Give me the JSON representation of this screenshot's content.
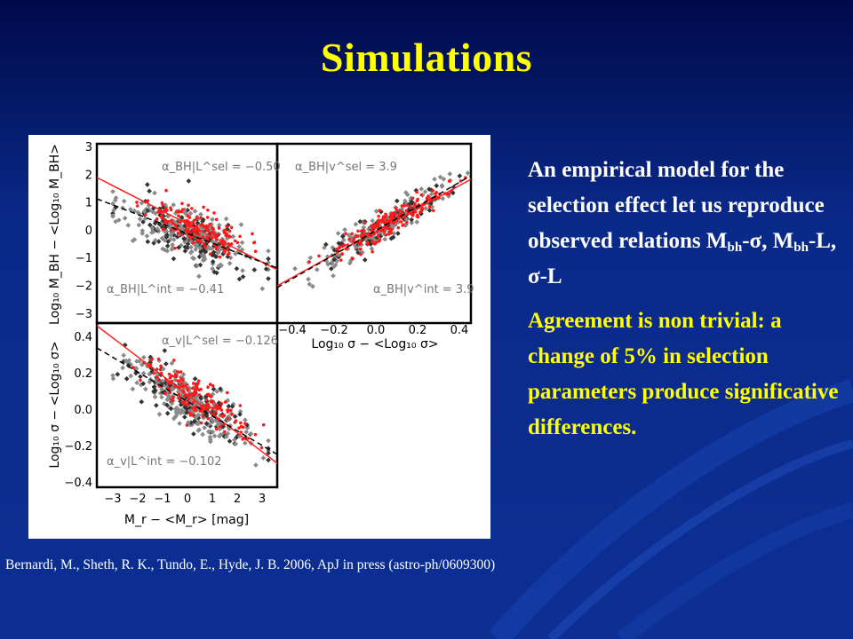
{
  "slide": {
    "title": "Simulations",
    "colors": {
      "title": "#ffff00",
      "body": "#ffffff",
      "highlight": "#ffff00",
      "background": "#0d2f94"
    }
  },
  "body": {
    "para1_intro": "An empirical model for the selection effect let us reproduce observed relations M",
    "para1_sub1": "bh",
    "para1_mid1": "-σ, M",
    "para1_sub2": "bh",
    "para1_tail": "-L, σ-L",
    "para2": "Agreement is non trivial: a change of  5% in selection parameters produce significative differences."
  },
  "citation": "Bernardi, M., Sheth, R. K., Tundo, E., Hyde, J. B. 2006, ApJ in press (astro-ph/0609300)",
  "figure": {
    "y_label_top": "Log₁₀ M_BH − <Log₁₀ M_BH>",
    "y_label_bottom": "Log₁₀ σ − <Log₁₀ σ>",
    "x_label_right": "Log₁₀ σ − <Log₁₀ σ>",
    "x_label_bottom": "M_r − <M_r> [mag]",
    "panels": [
      {
        "sel_label": "α_BH|L^sel = −0.50",
        "int_label": "α_BH|L^int = −0.41"
      },
      {
        "sel_label": "α_BH|v^sel = 3.9",
        "int_label": "α_BH|v^int = 3.9"
      },
      {
        "sel_label": "α_v|L^sel = −0.126",
        "int_label": "α_v|L^int = −0.102"
      }
    ],
    "ticks": {
      "mbh": [
        "3",
        "2",
        "1",
        "0",
        "−1",
        "−2",
        "−3"
      ],
      "sigma_y": [
        "0.4",
        "0.2",
        "0.0",
        "−0.2",
        "−0.4"
      ],
      "sigma_x": [
        "−0.4",
        "−0.2",
        "0.0",
        "0.2",
        "0.4"
      ],
      "mag_x": [
        "−3",
        "−2",
        "−1",
        "0",
        "1",
        "2",
        "3"
      ]
    }
  }
}
